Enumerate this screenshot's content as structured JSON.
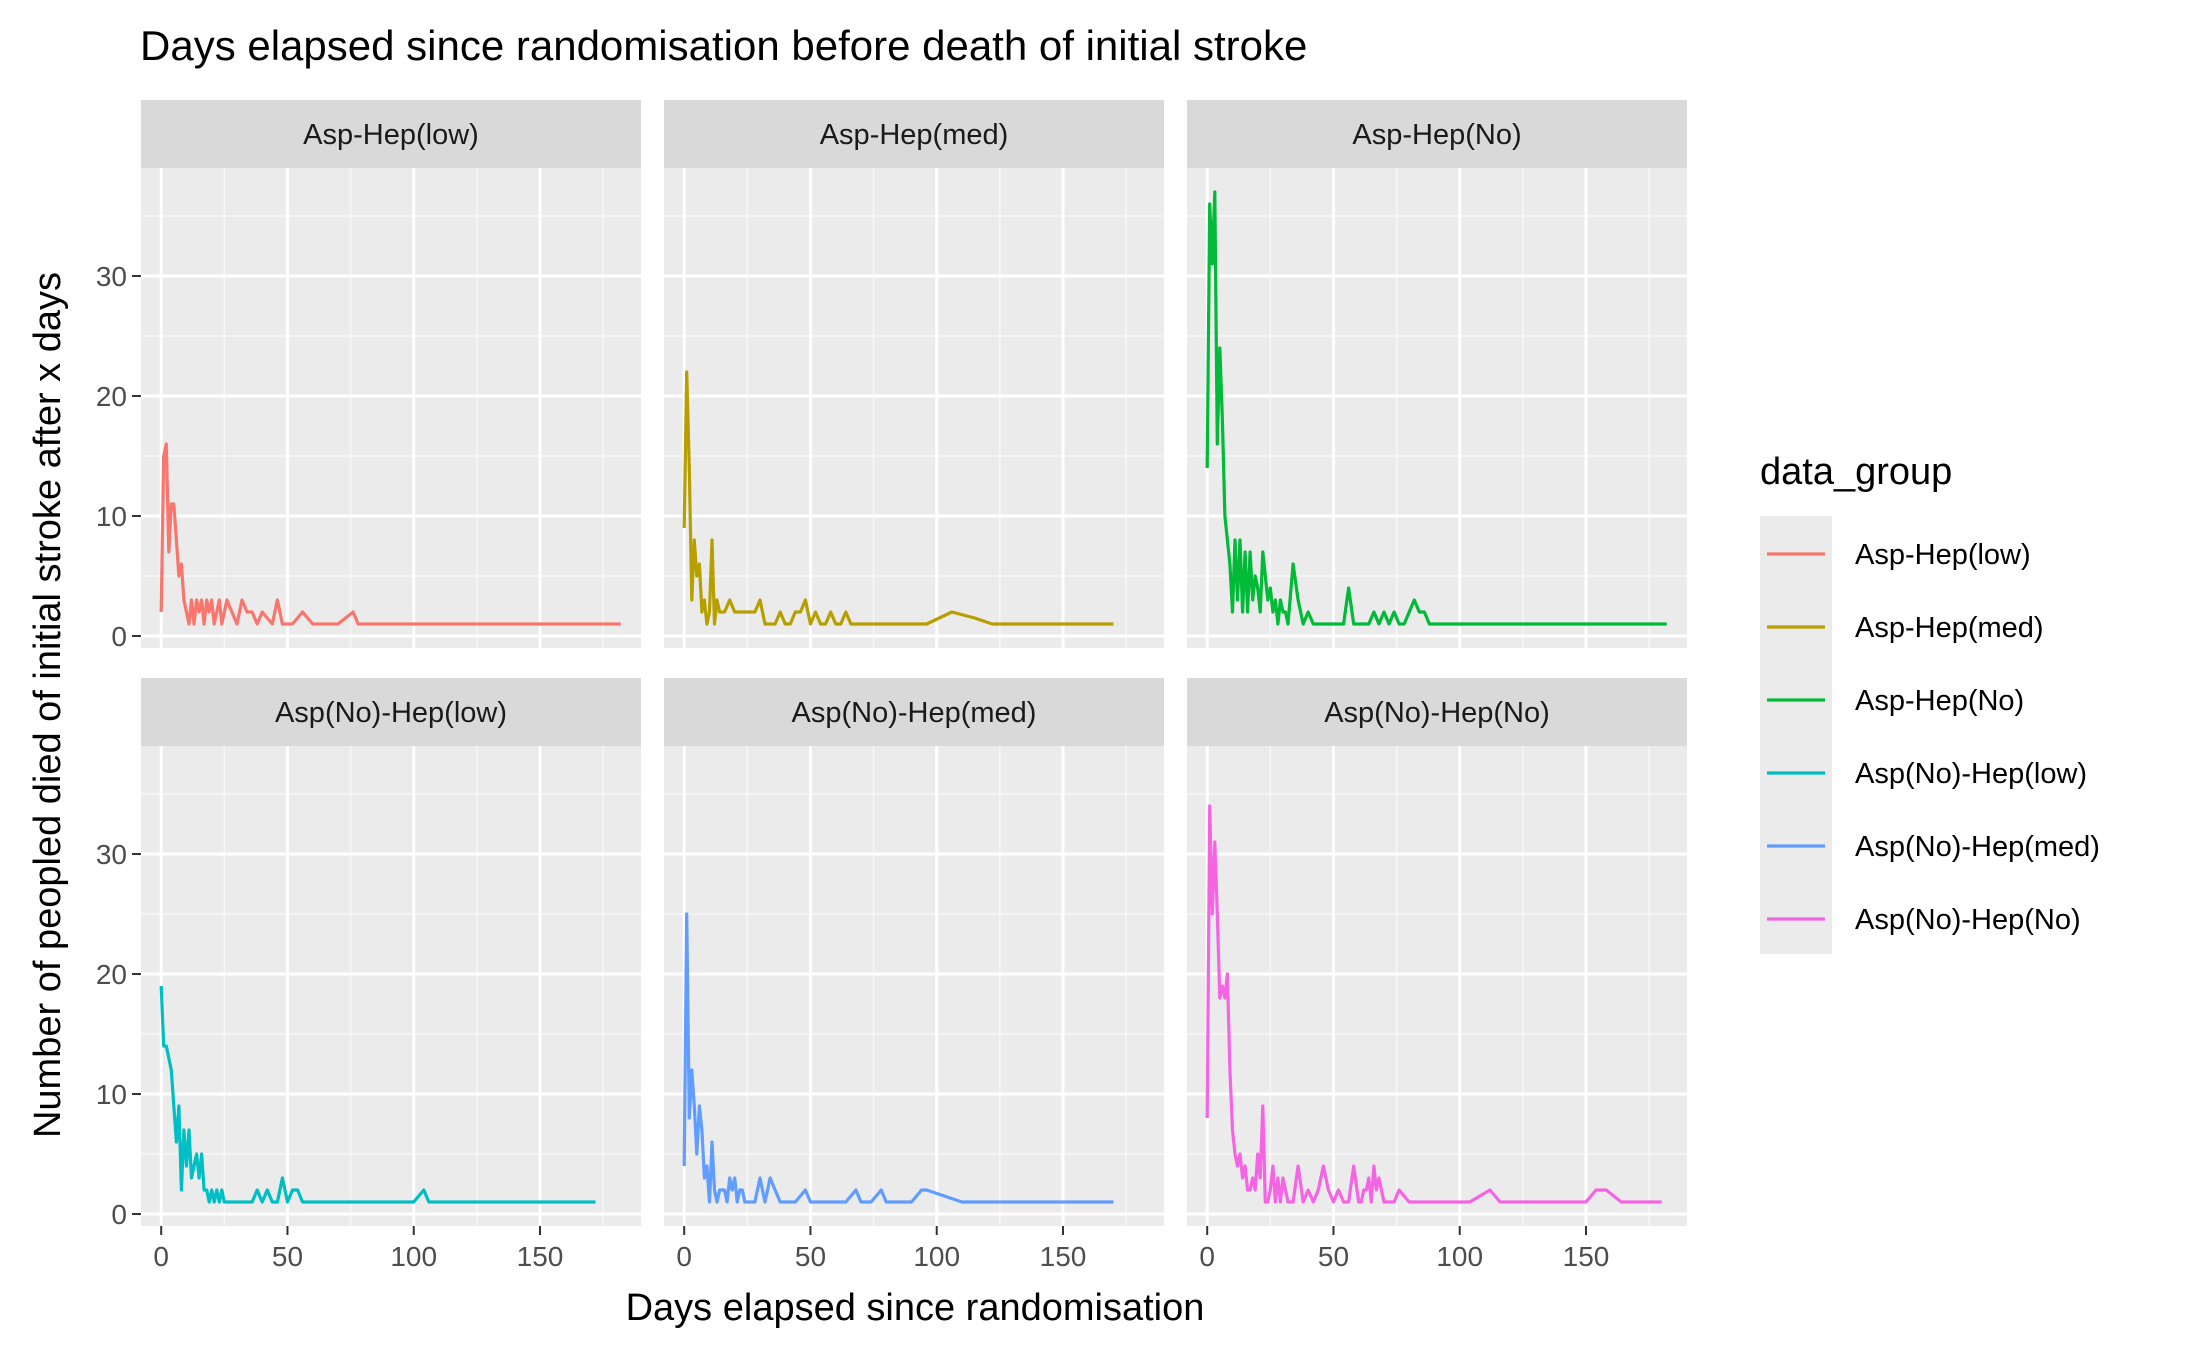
{
  "chart_data": {
    "type": "line",
    "title": "Days elapsed since randomisation before death of initial stroke",
    "xlabel": "Days elapsed since randomisation",
    "ylabel": "Number of peopled died of initial stroke after x days",
    "xlim": [
      -8,
      190
    ],
    "ylim": [
      -1,
      39
    ],
    "x_ticks": [
      0,
      50,
      100,
      150
    ],
    "y_ticks": [
      0,
      10,
      20,
      30
    ],
    "x_tick_labels": [
      "0",
      "50",
      "100",
      "150"
    ],
    "y_tick_labels": [
      "0",
      "10",
      "20",
      "30"
    ],
    "grid": true,
    "legend_title": "data_group",
    "legend_position": "right",
    "facets": [
      "Asp-Hep(low)",
      "Asp-Hep(med)",
      "Asp-Hep(No)",
      "Asp(No)-Hep(low)",
      "Asp(No)-Hep(med)",
      "Asp(No)-Hep(No)"
    ],
    "series": [
      {
        "name": "Asp-Hep(low)",
        "color": "#F8766D",
        "x": [
          0,
          1,
          2,
          3,
          4,
          5,
          6,
          7,
          8,
          9,
          10,
          11,
          12,
          13,
          14,
          15,
          16,
          17,
          18,
          19,
          20,
          21,
          22,
          23,
          24,
          26,
          28,
          30,
          32,
          34,
          36,
          38,
          40,
          44,
          46,
          48,
          50,
          52,
          56,
          60,
          70,
          76,
          78,
          80,
          90,
          100,
          110,
          120,
          130,
          140,
          150,
          160,
          170,
          182
        ],
        "y": [
          2,
          15,
          16,
          7,
          11,
          11,
          8,
          5,
          6,
          3,
          2,
          1,
          3,
          1,
          3,
          2,
          3,
          1,
          3,
          2,
          3,
          1,
          2,
          3,
          1,
          3,
          2,
          1,
          3,
          2,
          2,
          1,
          2,
          1,
          3,
          1,
          1,
          1,
          2,
          1,
          1,
          2,
          1,
          1,
          1,
          1,
          1,
          1,
          1,
          1,
          1,
          1,
          1,
          1
        ]
      },
      {
        "name": "Asp-Hep(med)",
        "color": "#B79F00",
        "x": [
          0,
          1,
          2,
          3,
          4,
          5,
          6,
          7,
          8,
          9,
          10,
          11,
          12,
          13,
          14,
          15,
          16,
          18,
          20,
          22,
          24,
          26,
          28,
          30,
          32,
          34,
          36,
          38,
          40,
          42,
          44,
          46,
          48,
          50,
          52,
          54,
          56,
          58,
          60,
          62,
          64,
          66,
          70,
          80,
          90,
          96,
          106,
          115,
          122,
          130,
          150,
          170
        ],
        "y": [
          9,
          22,
          14,
          3,
          8,
          5,
          6,
          2,
          3,
          1,
          2,
          8,
          1,
          3,
          2,
          2,
          2,
          3,
          2,
          2,
          2,
          2,
          2,
          3,
          1,
          1,
          1,
          2,
          1,
          1,
          2,
          2,
          3,
          1,
          2,
          1,
          1,
          2,
          1,
          1,
          2,
          1,
          1,
          1,
          1,
          1,
          2,
          1.5,
          1,
          1,
          1,
          1
        ]
      },
      {
        "name": "Asp-Hep(No)",
        "color": "#00BA38",
        "x": [
          0,
          1,
          2,
          3,
          4,
          5,
          6,
          7,
          8,
          9,
          10,
          11,
          12,
          13,
          14,
          15,
          16,
          17,
          18,
          19,
          20,
          21,
          22,
          23,
          24,
          25,
          26,
          27,
          28,
          29,
          30,
          31,
          32,
          34,
          36,
          38,
          40,
          42,
          44,
          46,
          48,
          50,
          52,
          54,
          56,
          58,
          60,
          62,
          64,
          66,
          68,
          70,
          72,
          74,
          76,
          78,
          80,
          82,
          84,
          86,
          88,
          90,
          100,
          110,
          120,
          130,
          140,
          150,
          160,
          170,
          182
        ],
        "y": [
          14,
          36,
          31,
          37,
          16,
          24,
          18,
          10,
          8,
          6,
          2,
          8,
          3,
          8,
          2,
          7,
          2,
          7,
          3,
          5,
          4,
          2,
          7,
          5,
          3,
          4,
          2,
          3,
          1,
          3,
          2,
          2,
          1,
          6,
          3,
          1,
          2,
          1,
          1,
          1,
          1,
          1,
          1,
          1,
          4,
          1,
          1,
          1,
          1,
          2,
          1,
          2,
          1,
          2,
          1,
          1,
          2,
          3,
          2,
          2,
          1,
          1,
          1,
          1,
          1,
          1,
          1,
          1,
          1,
          1,
          1
        ]
      },
      {
        "name": "Asp(No)-Hep(low)",
        "color": "#00BFC4",
        "x": [
          0,
          1,
          2,
          3,
          4,
          5,
          6,
          7,
          8,
          9,
          10,
          11,
          12,
          13,
          14,
          15,
          16,
          17,
          18,
          19,
          20,
          21,
          22,
          23,
          24,
          25,
          26,
          28,
          30,
          32,
          34,
          36,
          38,
          40,
          42,
          44,
          46,
          48,
          50,
          52,
          54,
          56,
          60,
          70,
          80,
          90,
          100,
          104,
          106,
          110,
          120,
          130,
          140,
          150,
          160,
          172
        ],
        "y": [
          19,
          14,
          14,
          13,
          12,
          9,
          6,
          9,
          2,
          7,
          4,
          7,
          3,
          4,
          5,
          3,
          5,
          2,
          2,
          1,
          2,
          1,
          2,
          1,
          2,
          1,
          1,
          1,
          1,
          1,
          1,
          1,
          2,
          1,
          2,
          1,
          1,
          3,
          1,
          2,
          2,
          1,
          1,
          1,
          1,
          1,
          1,
          2,
          1,
          1,
          1,
          1,
          1,
          1,
          1,
          1
        ]
      },
      {
        "name": "Asp(No)-Hep(med)",
        "color": "#619CFF",
        "x": [
          0,
          1,
          2,
          3,
          4,
          5,
          6,
          7,
          8,
          9,
          10,
          11,
          12,
          13,
          14,
          15,
          16,
          17,
          18,
          19,
          20,
          21,
          22,
          23,
          24,
          26,
          28,
          30,
          32,
          34,
          36,
          38,
          40,
          44,
          48,
          50,
          55,
          60,
          64,
          68,
          70,
          74,
          78,
          80,
          84,
          90,
          94,
          96,
          110,
          120,
          130,
          140,
          150,
          160,
          170
        ],
        "y": [
          4,
          25,
          8,
          12,
          9,
          5,
          9,
          7,
          3,
          4,
          1,
          6,
          2,
          1,
          2,
          2,
          2,
          1,
          3,
          2,
          3,
          1,
          2,
          2,
          1,
          1,
          1,
          3,
          1,
          3,
          2,
          1,
          1,
          1,
          2,
          1,
          1,
          1,
          1,
          2,
          1,
          1,
          2,
          1,
          1,
          1,
          2,
          2,
          1,
          1,
          1,
          1,
          1,
          1,
          1
        ]
      },
      {
        "name": "Asp(No)-Hep(No)",
        "color": "#F564E3",
        "x": [
          0,
          1,
          2,
          3,
          4,
          5,
          6,
          7,
          8,
          9,
          10,
          11,
          12,
          13,
          14,
          15,
          16,
          17,
          18,
          19,
          20,
          21,
          22,
          23,
          24,
          25,
          26,
          27,
          28,
          29,
          30,
          32,
          34,
          36,
          38,
          40,
          42,
          44,
          46,
          48,
          50,
          52,
          54,
          56,
          58,
          60,
          61,
          62,
          63,
          64,
          65,
          66,
          67,
          68,
          70,
          72,
          74,
          76,
          80,
          90,
          100,
          104,
          112,
          116,
          120,
          130,
          140,
          150,
          154,
          158,
          164,
          172,
          180
        ],
        "y": [
          8,
          34,
          25,
          31,
          25,
          18,
          19,
          18,
          20,
          12,
          7,
          5,
          4,
          5,
          3,
          4,
          2,
          2,
          3,
          2,
          5,
          3,
          9,
          1,
          1,
          2,
          4,
          1,
          3,
          1,
          3,
          1,
          1,
          4,
          1,
          2,
          1,
          2,
          4,
          2,
          1,
          2,
          1,
          1,
          4,
          1,
          1,
          2,
          2,
          3,
          1,
          4,
          2,
          3,
          1,
          1,
          1,
          2,
          1,
          1,
          1,
          1,
          2,
          1,
          1,
          1,
          1,
          1,
          2,
          2,
          1,
          1,
          1
        ]
      }
    ]
  }
}
